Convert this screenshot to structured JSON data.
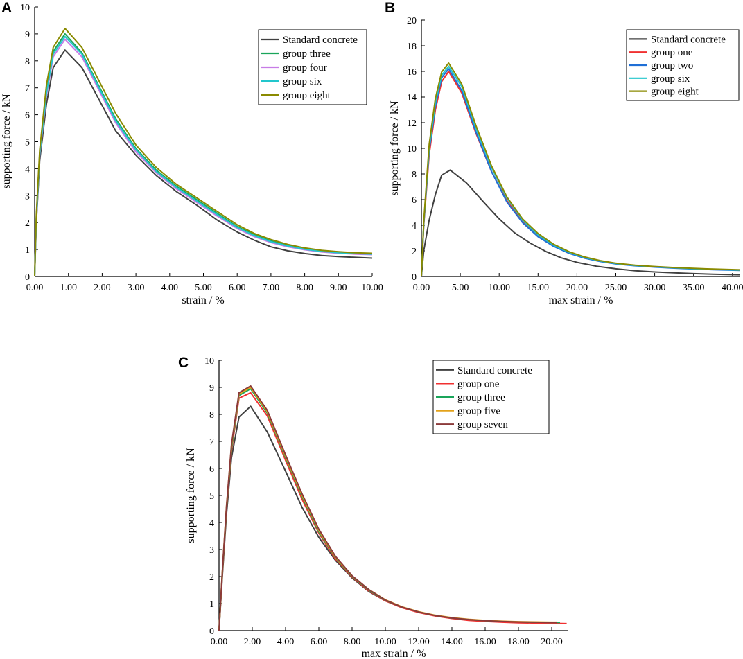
{
  "chart_data": [
    {
      "panel": "A",
      "type": "line",
      "xlabel": "strain / %",
      "ylabel": "supporting force / kN",
      "xlim": [
        0,
        10
      ],
      "ylim": [
        0,
        10
      ],
      "xticks": [
        0,
        1,
        2,
        3,
        4,
        5,
        6,
        7,
        8,
        9,
        10
      ],
      "xtick_labels": [
        "0.00",
        "1.00",
        "2.00",
        "3.00",
        "4.00",
        "5.00",
        "6.00",
        "7.00",
        "8.00",
        "9.00",
        "10.00"
      ],
      "yticks": [
        0,
        1,
        2,
        3,
        4,
        5,
        6,
        7,
        8,
        9,
        10
      ],
      "ytick_labels": [
        "0",
        "1",
        "2",
        "3",
        "4",
        "5",
        "6",
        "7",
        "8",
        "9",
        "10"
      ],
      "legend_position": "top-right",
      "series": [
        {
          "name": "Standard concrete",
          "color": "#404040",
          "x": [
            0,
            0.05,
            0.15,
            0.35,
            0.55,
            0.9,
            1.4,
            2.4,
            3.0,
            3.6,
            4.2,
            4.8,
            5.4,
            6.0,
            6.5,
            7.0,
            7.5,
            8.0,
            8.5,
            9.0,
            9.5,
            10.0
          ],
          "y": [
            0,
            2.0,
            4.3,
            6.4,
            7.75,
            8.4,
            7.75,
            5.4,
            4.5,
            3.75,
            3.15,
            2.65,
            2.1,
            1.65,
            1.35,
            1.1,
            0.95,
            0.85,
            0.78,
            0.74,
            0.71,
            0.68
          ]
        },
        {
          "name": "group three",
          "color": "#1aa55a",
          "x": [
            0,
            0.05,
            0.15,
            0.35,
            0.55,
            0.9,
            1.4,
            2.4,
            3.0,
            3.6,
            4.2,
            4.8,
            5.4,
            6.0,
            6.5,
            7.0,
            7.5,
            8.0,
            8.5,
            9.0,
            9.5,
            10.0
          ],
          "y": [
            0,
            2.2,
            4.6,
            6.9,
            8.35,
            9.0,
            8.3,
            5.85,
            4.75,
            3.95,
            3.35,
            2.85,
            2.35,
            1.85,
            1.55,
            1.32,
            1.15,
            1.03,
            0.95,
            0.9,
            0.86,
            0.84
          ]
        },
        {
          "name": "group four",
          "color": "#c77ce6",
          "x": [
            0,
            0.05,
            0.15,
            0.35,
            0.55,
            0.9,
            1.4,
            2.4,
            3.0,
            3.6,
            4.2,
            4.8,
            5.4,
            6.0,
            6.5,
            7.0,
            7.5,
            8.0,
            8.5,
            9.0,
            9.5,
            10.0
          ],
          "y": [
            0,
            2.1,
            4.5,
            6.7,
            8.15,
            8.8,
            8.15,
            5.7,
            4.62,
            3.85,
            3.25,
            2.75,
            2.25,
            1.78,
            1.48,
            1.26,
            1.1,
            0.99,
            0.91,
            0.86,
            0.83,
            0.81
          ]
        },
        {
          "name": "group six",
          "color": "#22c6cc",
          "x": [
            0,
            0.05,
            0.15,
            0.35,
            0.55,
            0.9,
            1.4,
            2.4,
            3.0,
            3.6,
            4.2,
            4.8,
            5.4,
            6.0,
            6.5,
            7.0,
            7.5,
            8.0,
            8.5,
            9.0,
            9.5,
            10.0
          ],
          "y": [
            0,
            2.15,
            4.55,
            6.8,
            8.25,
            8.9,
            8.25,
            5.78,
            4.7,
            3.9,
            3.3,
            2.8,
            2.3,
            1.82,
            1.52,
            1.29,
            1.13,
            1.01,
            0.93,
            0.88,
            0.85,
            0.83
          ]
        },
        {
          "name": "group eight",
          "color": "#8a8a00",
          "x": [
            0,
            0.05,
            0.15,
            0.35,
            0.55,
            0.9,
            1.4,
            2.4,
            3.0,
            3.6,
            4.2,
            4.8,
            5.4,
            6.0,
            6.5,
            7.0,
            7.5,
            8.0,
            8.5,
            9.0,
            9.5,
            10.0
          ],
          "y": [
            0,
            2.3,
            4.7,
            7.1,
            8.5,
            9.2,
            8.5,
            6.05,
            4.88,
            4.05,
            3.42,
            2.92,
            2.42,
            1.92,
            1.6,
            1.37,
            1.19,
            1.06,
            0.97,
            0.92,
            0.88,
            0.86
          ]
        }
      ]
    },
    {
      "panel": "B",
      "type": "line",
      "xlabel": "max strain / %",
      "ylabel": "supporting force / kN",
      "xlim": [
        0,
        41
      ],
      "ylim": [
        0,
        20
      ],
      "xticks": [
        0,
        5,
        10,
        15,
        20,
        25,
        30,
        35,
        40
      ],
      "xtick_labels": [
        "0.00",
        "5.00",
        "10.00",
        "15.00",
        "20.00",
        "25.00",
        "30.00",
        "35.00",
        "40.00"
      ],
      "yticks": [
        0,
        2,
        4,
        6,
        8,
        10,
        12,
        14,
        16,
        18,
        20
      ],
      "ytick_labels": [
        "0",
        "2",
        "4",
        "6",
        "8",
        "10",
        "12",
        "14",
        "16",
        "18",
        "20"
      ],
      "legend_position": "top-right",
      "series": [
        {
          "name": "Standard concrete",
          "color": "#404040",
          "x": [
            0,
            0.3,
            1.0,
            1.8,
            2.6,
            3.7,
            5.8,
            8.0,
            10.0,
            12.0,
            14.0,
            16.0,
            18.0,
            20.0,
            22.5,
            25.0,
            27.5,
            30.0,
            32.5,
            35.0,
            37.5,
            41.0
          ],
          "y": [
            0,
            2.0,
            4.4,
            6.4,
            7.9,
            8.3,
            7.3,
            5.8,
            4.5,
            3.4,
            2.6,
            1.95,
            1.45,
            1.1,
            0.8,
            0.6,
            0.45,
            0.35,
            0.28,
            0.22,
            0.18,
            0.13
          ]
        },
        {
          "name": "group one",
          "color": "#f03030",
          "x": [
            0,
            0.3,
            1.0,
            1.8,
            2.6,
            3.5,
            5.2,
            7.0,
            9.0,
            11.0,
            13.0,
            15.0,
            17.0,
            19.0,
            21.0,
            23.0,
            25.0,
            27.5,
            30.0,
            32.5,
            35.0,
            37.5,
            41.0
          ],
          "y": [
            0,
            4.0,
            9.5,
            13.0,
            15.2,
            16.0,
            14.3,
            11.2,
            8.2,
            5.9,
            4.3,
            3.2,
            2.4,
            1.85,
            1.45,
            1.2,
            1.0,
            0.85,
            0.75,
            0.67,
            0.6,
            0.55,
            0.5
          ]
        },
        {
          "name": "group two",
          "color": "#1f6fd6",
          "x": [
            0,
            0.3,
            1.0,
            1.8,
            2.6,
            3.5,
            5.2,
            7.0,
            9.0,
            11.0,
            13.0,
            15.0,
            17.0,
            19.0,
            21.0,
            23.0,
            25.0,
            27.5,
            30.0,
            32.5,
            35.0,
            37.5,
            41.0
          ],
          "y": [
            0,
            4.1,
            9.8,
            13.3,
            15.5,
            16.2,
            14.5,
            11.3,
            8.2,
            5.8,
            4.2,
            3.1,
            2.35,
            1.8,
            1.42,
            1.17,
            0.98,
            0.83,
            0.73,
            0.65,
            0.58,
            0.53,
            0.47
          ]
        },
        {
          "name": "group six",
          "color": "#22c6cc",
          "x": [
            0,
            0.3,
            1.0,
            1.8,
            2.6,
            3.5,
            5.2,
            7.0,
            9.0,
            11.0,
            13.0,
            15.0,
            17.0,
            19.0,
            21.0,
            23.0,
            25.0,
            27.5,
            30.0,
            32.5,
            35.0,
            37.5,
            41.0
          ],
          "y": [
            0,
            4.2,
            10.0,
            13.6,
            15.7,
            16.4,
            14.8,
            11.6,
            8.5,
            6.1,
            4.4,
            3.25,
            2.45,
            1.88,
            1.48,
            1.21,
            1.01,
            0.86,
            0.76,
            0.68,
            0.61,
            0.56,
            0.5
          ]
        },
        {
          "name": "group eight",
          "color": "#8a8a00",
          "x": [
            0,
            0.3,
            1.0,
            1.8,
            2.6,
            3.5,
            5.2,
            7.0,
            9.0,
            11.0,
            13.0,
            15.0,
            17.0,
            19.0,
            21.0,
            23.0,
            25.0,
            27.5,
            30.0,
            32.5,
            35.0,
            37.5,
            41.0
          ],
          "y": [
            0,
            4.3,
            10.3,
            13.9,
            15.95,
            16.65,
            15.0,
            11.8,
            8.65,
            6.2,
            4.5,
            3.35,
            2.52,
            1.93,
            1.52,
            1.24,
            1.04,
            0.88,
            0.78,
            0.7,
            0.63,
            0.58,
            0.52
          ]
        }
      ]
    },
    {
      "panel": "C",
      "type": "line",
      "xlabel": "max strain / %",
      "ylabel": "supporting force / kN",
      "xlim": [
        0,
        21
      ],
      "ylim": [
        0,
        10
      ],
      "xticks": [
        0,
        2,
        4,
        6,
        8,
        10,
        12,
        14,
        16,
        18,
        20
      ],
      "xtick_labels": [
        "0.00",
        "2.00",
        "4.00",
        "6.00",
        "8.00",
        "10.00",
        "12.00",
        "14.00",
        "16.00",
        "18.00",
        "20.00"
      ],
      "yticks": [
        0,
        1,
        2,
        3,
        4,
        5,
        6,
        7,
        8,
        9,
        10
      ],
      "ytick_labels": [
        "0",
        "1",
        "2",
        "3",
        "4",
        "5",
        "6",
        "7",
        "8",
        "9",
        "10"
      ],
      "legend_position": "top-right",
      "series": [
        {
          "name": "Standard concrete",
          "color": "#404040",
          "x": [
            0,
            0.2,
            0.45,
            0.75,
            1.2,
            1.9,
            2.9,
            4.0,
            5.0,
            6.0,
            7.0,
            8.0,
            9.0,
            10.0,
            11.0,
            12.0,
            13.0,
            14.0,
            15.0,
            16.0,
            17.0,
            18.0,
            19.0,
            20.0,
            20.5
          ],
          "y": [
            0,
            2.0,
            4.3,
            6.4,
            7.9,
            8.3,
            7.35,
            5.9,
            4.55,
            3.45,
            2.6,
            1.95,
            1.45,
            1.1,
            0.85,
            0.68,
            0.55,
            0.46,
            0.4,
            0.36,
            0.33,
            0.31,
            0.3,
            0.29,
            0.29
          ]
        },
        {
          "name": "group one",
          "color": "#f03030",
          "x": [
            0,
            0.2,
            0.45,
            0.75,
            1.2,
            1.9,
            2.9,
            4.0,
            5.0,
            6.0,
            7.0,
            8.0,
            9.0,
            10.0,
            11.0,
            12.0,
            13.0,
            14.0,
            15.0,
            16.0,
            17.0,
            18.0,
            19.0,
            20.0,
            20.9
          ],
          "y": [
            0,
            2.1,
            4.5,
            6.65,
            8.6,
            8.8,
            7.95,
            6.3,
            4.85,
            3.6,
            2.65,
            1.98,
            1.47,
            1.1,
            0.85,
            0.67,
            0.54,
            0.45,
            0.38,
            0.34,
            0.31,
            0.29,
            0.28,
            0.27,
            0.26
          ]
        },
        {
          "name": "group three",
          "color": "#1aa55a",
          "x": [
            0,
            0.2,
            0.45,
            0.75,
            1.2,
            1.9,
            2.9,
            4.0,
            5.0,
            6.0,
            7.0,
            8.0,
            9.0,
            10.0,
            11.0,
            12.0,
            13.0,
            14.0,
            15.0,
            16.0,
            17.0,
            18.0,
            19.0,
            20.0,
            20.5
          ],
          "y": [
            0,
            2.15,
            4.55,
            6.75,
            8.7,
            8.95,
            8.05,
            6.4,
            4.95,
            3.65,
            2.7,
            2.0,
            1.5,
            1.12,
            0.87,
            0.69,
            0.56,
            0.47,
            0.41,
            0.37,
            0.34,
            0.32,
            0.31,
            0.3,
            0.3
          ]
        },
        {
          "name": "group five",
          "color": "#e3a21a",
          "x": [
            0,
            0.2,
            0.45,
            0.75,
            1.2,
            1.9,
            2.9,
            4.0,
            5.0,
            6.0,
            7.0,
            8.0,
            9.0,
            10.0,
            11.0,
            12.0,
            13.0,
            14.0,
            15.0,
            16.0,
            17.0,
            18.0,
            19.0,
            20.0,
            20.3
          ],
          "y": [
            0,
            2.2,
            4.6,
            6.85,
            8.75,
            9.0,
            8.1,
            6.45,
            5.0,
            3.7,
            2.72,
            2.02,
            1.52,
            1.14,
            0.88,
            0.7,
            0.57,
            0.48,
            0.42,
            0.38,
            0.35,
            0.33,
            0.32,
            0.31,
            0.31
          ]
        },
        {
          "name": "group seven",
          "color": "#8b3a3a",
          "x": [
            0,
            0.2,
            0.45,
            0.75,
            1.2,
            1.9,
            2.9,
            4.0,
            5.0,
            6.0,
            7.0,
            8.0,
            9.0,
            10.0,
            11.0,
            12.0,
            13.0,
            14.0,
            15.0,
            16.0,
            17.0,
            18.0,
            19.0,
            20.0,
            20.3
          ],
          "y": [
            0,
            2.2,
            4.6,
            6.9,
            8.8,
            9.05,
            8.15,
            6.5,
            5.05,
            3.75,
            2.75,
            2.03,
            1.52,
            1.13,
            0.87,
            0.69,
            0.56,
            0.47,
            0.41,
            0.37,
            0.34,
            0.32,
            0.31,
            0.3,
            0.3
          ]
        }
      ]
    }
  ]
}
